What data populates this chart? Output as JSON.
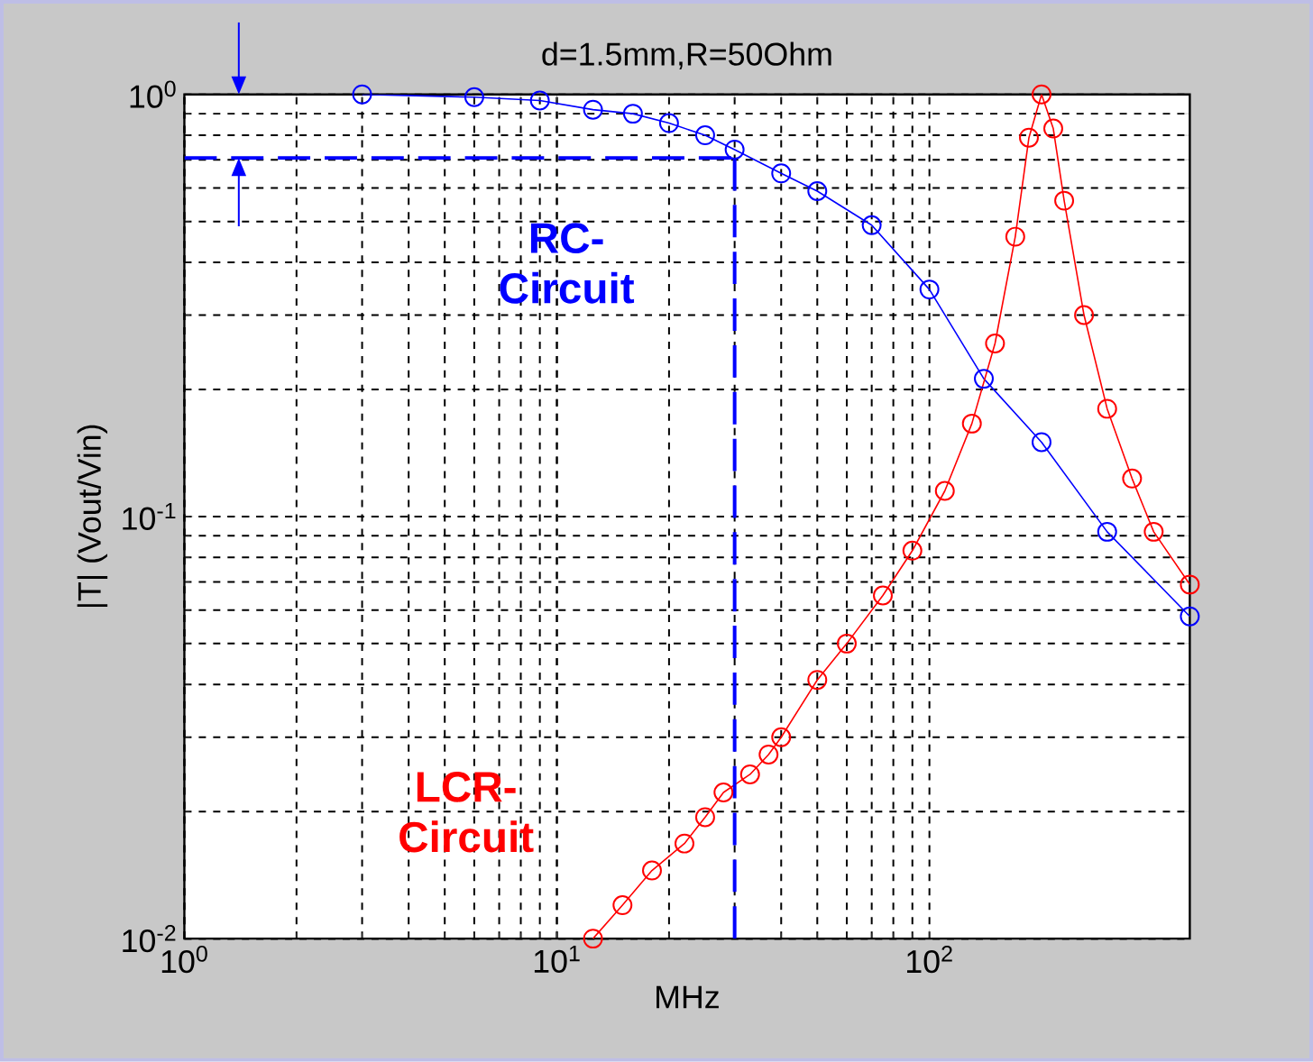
{
  "chart_data": {
    "type": "line",
    "title": "d=1.5mm,R=50Ohm",
    "xlabel": "MHz",
    "ylabel": "|T| (Vout/Vin)",
    "log": "xy",
    "grid": true,
    "marker": "circle",
    "line_style": "solid",
    "xlim": [
      1,
      500
    ],
    "ylim": [
      0.01,
      1
    ],
    "xticks": [
      {
        "value": 1,
        "label": "10$^{0}$"
      },
      {
        "value": 10,
        "label": "10$^{1}$"
      },
      {
        "value": 100,
        "label": "10$^{2}$"
      }
    ],
    "yticks": [
      {
        "value": 0.01,
        "label": "10$^{-2}$"
      },
      {
        "value": 0.1,
        "label": "10$^{-1}$"
      },
      {
        "value": 1,
        "label": "10$^{0}$"
      }
    ],
    "series": [
      {
        "color": "#0000ff",
        "x": [
          3,
          6,
          9,
          12.5,
          16,
          20,
          25,
          30,
          40,
          50,
          70,
          100,
          140,
          200,
          300,
          500
        ],
        "values": [
          1.0,
          0.985,
          0.967,
          0.92,
          0.9,
          0.855,
          0.8,
          0.74,
          0.65,
          0.59,
          0.49,
          0.345,
          0.212,
          0.15,
          0.092,
          0.058
        ]
      },
      {
        "color": "#ff0000",
        "x": [
          12.5,
          15,
          18,
          22,
          25,
          28,
          33,
          37,
          40,
          50,
          60,
          75,
          90,
          110,
          130,
          150,
          170,
          185,
          200,
          215,
          230,
          260,
          300,
          350,
          400,
          500
        ],
        "values": [
          0.01,
          0.012,
          0.0145,
          0.0168,
          0.0194,
          0.0222,
          0.0245,
          0.0273,
          0.03,
          0.041,
          0.05,
          0.065,
          0.083,
          0.115,
          0.166,
          0.257,
          0.46,
          0.79,
          1.0,
          0.83,
          0.56,
          0.3,
          0.18,
          0.123,
          0.092,
          0.069
        ]
      }
    ],
    "ref_lines": [
      {
        "axis": "y",
        "value": 0.707,
        "color": "#0000ff",
        "line_style": "dashed"
      },
      {
        "axis": "x",
        "value": 30,
        "color": "#0000ff",
        "line_style": "dashed"
      }
    ],
    "annotations": [
      "RC-Circuit",
      "LCR-Circuit"
    ]
  }
}
